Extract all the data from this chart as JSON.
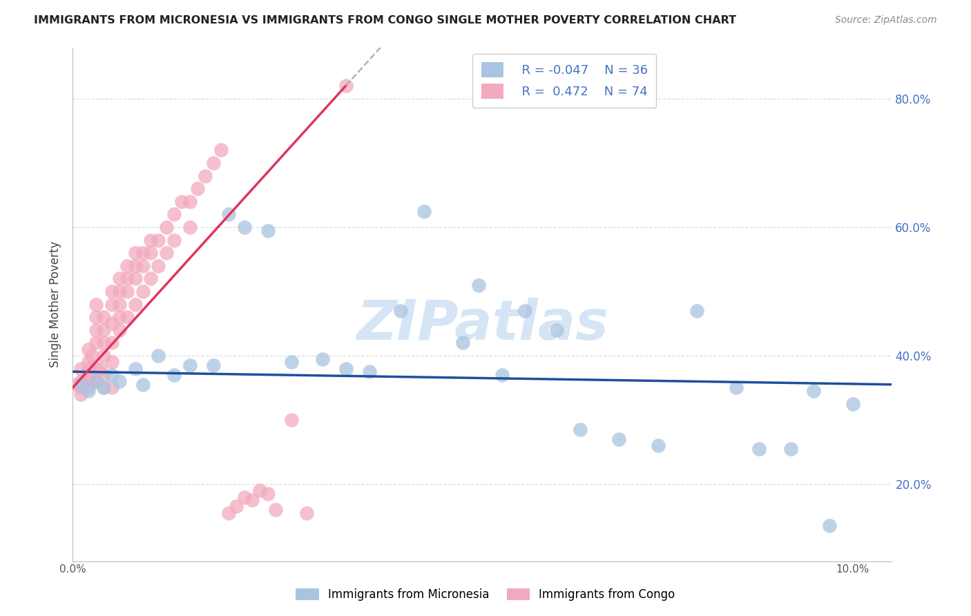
{
  "title": "IMMIGRANTS FROM MICRONESIA VS IMMIGRANTS FROM CONGO SINGLE MOTHER POVERTY CORRELATION CHART",
  "source": "Source: ZipAtlas.com",
  "ylabel": "Single Mother Poverty",
  "xlim": [
    0.0,
    0.105
  ],
  "ylim": [
    0.08,
    0.88
  ],
  "yticks": [
    0.2,
    0.4,
    0.6,
    0.8
  ],
  "ytick_labels_right": [
    "20.0%",
    "40.0%",
    "60.0%",
    "80.0%"
  ],
  "xticks": [
    0.0,
    0.02,
    0.04,
    0.06,
    0.08,
    0.1
  ],
  "xtick_labels": [
    "0.0%",
    "",
    "",
    "",
    "",
    "10.0%"
  ],
  "legend_r1": "R = -0.047",
  "legend_n1": "N = 36",
  "legend_r2": "R =  0.472",
  "legend_n2": "N = 74",
  "blue_scatter_color": "#A8C4E0",
  "pink_scatter_color": "#F2AABE",
  "blue_line_color": "#1F4E9F",
  "pink_line_color": "#E0365A",
  "watermark_color": "#D5E5F5",
  "grid_color": "#DDDDDD",
  "title_color": "#222222",
  "source_color": "#888888",
  "ylabel_color": "#444444",
  "right_tick_color": "#4472C4",
  "bottom_tick_color": "#555555",
  "micronesia_x": [
    0.001,
    0.002,
    0.003,
    0.004,
    0.005,
    0.006,
    0.008,
    0.009,
    0.011,
    0.013,
    0.015,
    0.018,
    0.02,
    0.022,
    0.025,
    0.028,
    0.032,
    0.035,
    0.038,
    0.042,
    0.045,
    0.05,
    0.052,
    0.055,
    0.058,
    0.062,
    0.065,
    0.07,
    0.075,
    0.08,
    0.085,
    0.088,
    0.092,
    0.095,
    0.097,
    0.1
  ],
  "micronesia_y": [
    0.355,
    0.345,
    0.36,
    0.35,
    0.37,
    0.36,
    0.38,
    0.355,
    0.4,
    0.37,
    0.385,
    0.385,
    0.62,
    0.6,
    0.595,
    0.39,
    0.395,
    0.38,
    0.375,
    0.47,
    0.625,
    0.42,
    0.51,
    0.37,
    0.47,
    0.44,
    0.285,
    0.27,
    0.26,
    0.47,
    0.35,
    0.255,
    0.255,
    0.345,
    0.135,
    0.325
  ],
  "congo_x": [
    0.0005,
    0.001,
    0.001,
    0.001,
    0.001,
    0.0015,
    0.002,
    0.002,
    0.002,
    0.002,
    0.002,
    0.0025,
    0.003,
    0.003,
    0.003,
    0.003,
    0.003,
    0.003,
    0.003,
    0.0035,
    0.004,
    0.004,
    0.004,
    0.004,
    0.004,
    0.004,
    0.005,
    0.005,
    0.005,
    0.005,
    0.005,
    0.005,
    0.006,
    0.006,
    0.006,
    0.006,
    0.006,
    0.007,
    0.007,
    0.007,
    0.007,
    0.008,
    0.008,
    0.008,
    0.008,
    0.009,
    0.009,
    0.009,
    0.01,
    0.01,
    0.01,
    0.011,
    0.011,
    0.012,
    0.012,
    0.013,
    0.013,
    0.014,
    0.015,
    0.015,
    0.016,
    0.017,
    0.018,
    0.019,
    0.02,
    0.021,
    0.022,
    0.023,
    0.024,
    0.025,
    0.026,
    0.028,
    0.03,
    0.035
  ],
  "congo_y": [
    0.355,
    0.34,
    0.36,
    0.38,
    0.35,
    0.36,
    0.37,
    0.39,
    0.41,
    0.35,
    0.38,
    0.4,
    0.36,
    0.38,
    0.42,
    0.44,
    0.46,
    0.48,
    0.36,
    0.38,
    0.4,
    0.42,
    0.44,
    0.46,
    0.35,
    0.37,
    0.39,
    0.42,
    0.45,
    0.48,
    0.5,
    0.35,
    0.44,
    0.46,
    0.48,
    0.5,
    0.52,
    0.5,
    0.52,
    0.54,
    0.46,
    0.52,
    0.54,
    0.56,
    0.48,
    0.54,
    0.56,
    0.5,
    0.56,
    0.58,
    0.52,
    0.58,
    0.54,
    0.6,
    0.56,
    0.62,
    0.58,
    0.64,
    0.64,
    0.6,
    0.66,
    0.68,
    0.7,
    0.72,
    0.155,
    0.165,
    0.18,
    0.175,
    0.19,
    0.185,
    0.16,
    0.3,
    0.155,
    0.82
  ]
}
